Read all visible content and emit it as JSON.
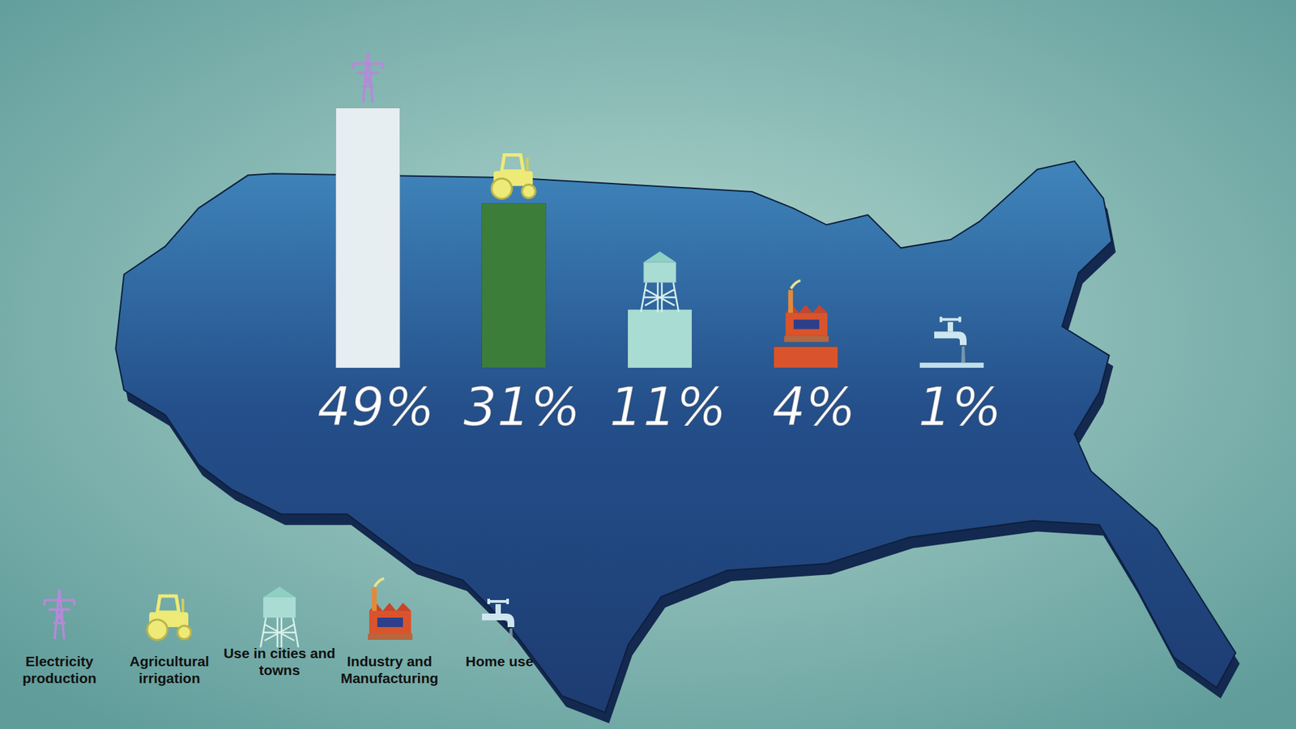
{
  "chart_data": {
    "type": "bar",
    "categories": [
      "Electricity production",
      "Agricultural irrigation",
      "Use in cities and towns",
      "Industry and Manufacturing",
      "Home use"
    ],
    "values": [
      49,
      31,
      11,
      4,
      1
    ],
    "value_labels": [
      "49%",
      "31%",
      "11%",
      "4%",
      "1%"
    ],
    "colors": [
      "#e6eef2",
      "#3c7d3a",
      "#a9dcd2",
      "#d9542c",
      "#bfe0ec"
    ],
    "data_labels": true,
    "tick_labels": false,
    "legend": "bottom-left"
  }
}
